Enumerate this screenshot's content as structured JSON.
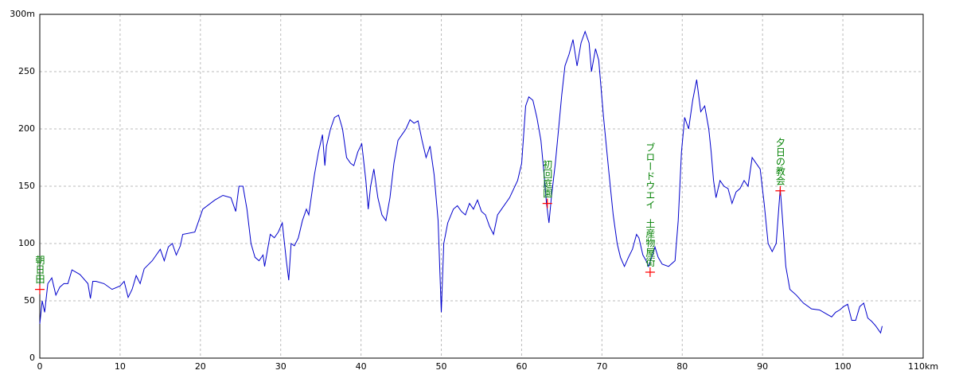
{
  "chart_data": {
    "type": "line",
    "x": [
      0,
      0.3,
      0.6,
      1,
      1.5,
      2,
      2.5,
      3,
      3.5,
      4,
      5,
      6,
      6.3,
      6.6,
      7,
      8,
      9,
      10,
      10.5,
      11,
      11.5,
      12,
      12.5,
      13,
      14,
      15,
      15.5,
      16,
      16.5,
      17,
      17.5,
      17.8,
      19.3,
      20.3,
      21.8,
      22.8,
      23.8,
      24.4,
      24.8,
      25.3,
      25.8,
      26.3,
      26.8,
      27.3,
      27.8,
      28.0,
      28.7,
      29.2,
      29.7,
      30.2,
      30.7,
      31.0,
      31.3,
      31.7,
      32.2,
      32.7,
      33.2,
      33.5,
      34.2,
      34.7,
      35.2,
      35.5,
      35.7,
      36.2,
      36.7,
      37.2,
      37.7,
      38.2,
      38.7,
      39.1,
      39.6,
      40.1,
      40.6,
      40.9,
      41.2,
      41.6,
      42.1,
      42.6,
      43.1,
      43.6,
      44.1,
      44.6,
      45.1,
      45.6,
      46.1,
      46.6,
      47.1,
      47.6,
      48.1,
      48.6,
      49.1,
      49.6,
      49.9,
      50.0,
      50.3,
      50.8,
      51.5,
      52.0,
      52.5,
      53.0,
      53.5,
      54.0,
      54.5,
      55.0,
      55.5,
      56.0,
      56.5,
      57.0,
      57.5,
      58.5,
      59.5,
      60.0,
      60.5,
      60.9,
      61.4,
      61.9,
      62.4,
      62.8,
      63.1,
      63.4,
      63.7,
      64.2,
      64.6,
      65.0,
      65.4,
      65.9,
      66.4,
      66.9,
      67.4,
      67.9,
      68.4,
      68.7,
      69.2,
      69.6,
      70.2,
      70.9,
      71.4,
      71.9,
      72.3,
      72.8,
      73.3,
      73.8,
      74.3,
      74.6,
      75.1,
      75.5,
      75.8,
      76.3,
      76.6,
      77.0,
      77.5,
      78.3,
      79.1,
      79.5,
      79.9,
      80.3,
      80.8,
      81.3,
      81.8,
      82.3,
      82.8,
      83.3,
      83.6,
      83.9,
      84.2,
      84.7,
      85.2,
      85.7,
      86.2,
      86.7,
      87.2,
      87.7,
      88.2,
      88.7,
      89.2,
      89.7,
      90.2,
      90.7,
      91.2,
      91.7,
      92.2,
      92.5,
      92.9,
      93.4,
      94.2,
      95.1,
      96.1,
      97.1,
      98.1,
      98.6,
      99.1,
      99.6,
      100.1,
      100.6,
      101.1,
      101.6,
      102.1,
      102.6,
      103.1,
      103.6,
      104.1,
      104.7,
      104.9
    ],
    "values": [
      30,
      50,
      40,
      65,
      70,
      55,
      62,
      65,
      65,
      77,
      73,
      65,
      52,
      67,
      67,
      65,
      60,
      63,
      67,
      53,
      60,
      72,
      65,
      78,
      85,
      95,
      85,
      97,
      100,
      90,
      98,
      108,
      110,
      130,
      138,
      142,
      140,
      128,
      150,
      150,
      130,
      100,
      88,
      85,
      90,
      80,
      108,
      105,
      110,
      118,
      85,
      68,
      100,
      98,
      105,
      120,
      130,
      125,
      160,
      180,
      195,
      168,
      185,
      200,
      210,
      212,
      200,
      175,
      170,
      168,
      180,
      187,
      155,
      130,
      150,
      165,
      140,
      125,
      120,
      140,
      170,
      190,
      195,
      200,
      208,
      205,
      207,
      190,
      175,
      185,
      160,
      120,
      60,
      40,
      100,
      118,
      130,
      133,
      128,
      125,
      135,
      130,
      138,
      128,
      125,
      115,
      108,
      125,
      130,
      140,
      155,
      170,
      220,
      228,
      225,
      210,
      190,
      160,
      135,
      118,
      140,
      170,
      200,
      230,
      255,
      265,
      278,
      255,
      275,
      285,
      275,
      250,
      270,
      260,
      210,
      160,
      125,
      100,
      88,
      80,
      88,
      95,
      108,
      105,
      90,
      85,
      80,
      90,
      97,
      88,
      82,
      80,
      85,
      120,
      180,
      210,
      200,
      225,
      243,
      215,
      220,
      200,
      180,
      155,
      140,
      155,
      150,
      148,
      135,
      145,
      148,
      155,
      150,
      175,
      170,
      165,
      135,
      100,
      93,
      100,
      148,
      120,
      80,
      60,
      55,
      48,
      43,
      42,
      38,
      36,
      40,
      42,
      45,
      47,
      33,
      33,
      45,
      48,
      35,
      32,
      28,
      22,
      28
    ],
    "color": "#0000cc",
    "xlim": [
      0,
      110
    ],
    "xticks": [
      0,
      10,
      20,
      30,
      40,
      50,
      60,
      70,
      80,
      90,
      100,
      {
        "value": 110,
        "label": "110km"
      }
    ],
    "ylim": [
      0,
      300
    ],
    "yticks": [
      0,
      50,
      100,
      150,
      200,
      250,
      {
        "value": 300,
        "label": "300m"
      }
    ],
    "grid": true,
    "annotations": [
      {
        "x": 0,
        "y": 60,
        "label": "朝日田"
      },
      {
        "x": 63.2,
        "y": 135,
        "label": "初回庭園"
      },
      {
        "x": 76,
        "y": 75,
        "label": "ブロードウエイ　土産物屋街"
      },
      {
        "x": 92.2,
        "y": 146,
        "label": "夕日の教会"
      }
    ]
  }
}
